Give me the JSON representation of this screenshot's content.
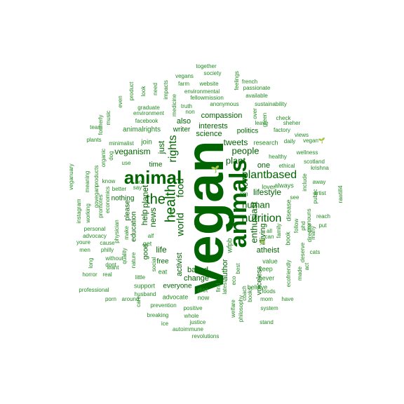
{
  "colors": {
    "dark": "#006400",
    "medium": "#228B22",
    "light": "#2E8B57"
  },
  "words": [
    {
      "text": "vegan",
      "weight": 1.0
    },
    {
      "text": "animals",
      "weight": 0.62
    },
    {
      "text": "animal",
      "weight": 0.5
    },
    {
      "text": "health",
      "weight": 0.36
    },
    {
      "text": "nutrition",
      "weight": 0.3
    },
    {
      "text": "plantbased",
      "weight": 0.3
    },
    {
      "text": "rights",
      "weight": 0.26
    },
    {
      "text": "the",
      "weight": 0.3
    },
    {
      "text": "world",
      "weight": 0.24
    },
    {
      "text": "food",
      "weight": 0.24
    },
    {
      "text": "human",
      "weight": 0.22
    },
    {
      "text": "people",
      "weight": 0.22
    },
    {
      "text": "plant",
      "weight": 0.22
    },
    {
      "text": "lifestyle",
      "weight": 0.2
    },
    {
      "text": "love",
      "weight": 0.2
    },
    {
      "text": "enthusiast",
      "weight": 0.2
    },
    {
      "text": "news",
      "weight": 0.18
    },
    {
      "text": "planet",
      "weight": 0.18
    },
    {
      "text": "help",
      "weight": 0.16
    },
    {
      "text": "just",
      "weight": 0.16
    },
    {
      "text": "veganism",
      "weight": 0.15
    },
    {
      "text": "compassion",
      "weight": 0.15
    },
    {
      "text": "tweets",
      "weight": 0.15
    },
    {
      "text": "interests",
      "weight": 0.14
    },
    {
      "text": "science",
      "weight": 0.14
    },
    {
      "text": "life",
      "weight": 0.15
    },
    {
      "text": "activist",
      "weight": 0.15
    },
    {
      "text": "author",
      "weight": 0.14
    },
    {
      "text": "based",
      "weight": 0.14
    },
    {
      "text": "change",
      "weight": 0.14
    },
    {
      "text": "atheist",
      "weight": 0.14
    },
    {
      "text": "living",
      "weight": 0.14
    },
    {
      "text": "one",
      "weight": 0.13
    },
    {
      "text": "politics",
      "weight": 0.13
    },
    {
      "text": "also",
      "weight": 0.13
    },
    {
      "text": "writer",
      "weight": 0.13
    },
    {
      "text": "time",
      "weight": 0.13
    },
    {
      "text": "nothing",
      "weight": 0.13
    },
    {
      "text": "education",
      "weight": 0.13
    },
    {
      "text": "please",
      "weight": 0.12
    },
    {
      "text": "voiceless",
      "weight": 0.12
    },
    {
      "text": "everyone",
      "weight": 0.12
    },
    {
      "text": "free",
      "weight": 0.12
    },
    {
      "text": "good",
      "weight": 0.12
    },
    {
      "text": "join",
      "weight": 0.11
    },
    {
      "text": "wfpb",
      "weight": 0.11
    },
    {
      "text": "animalrights",
      "weight": 0.11
    },
    {
      "text": "lover",
      "weight": 0.1
    },
    {
      "text": "always",
      "weight": 0.1
    },
    {
      "text": "keep",
      "weight": 0.1
    },
    {
      "text": "never",
      "weight": 0.1
    },
    {
      "text": "believe",
      "weight": 0.1
    },
    {
      "text": "value",
      "weight": 0.1
    },
    {
      "text": "disease",
      "weight": 0.1
    },
    {
      "text": "book",
      "weight": 0.1
    },
    {
      "text": "research",
      "weight": 0.09
    },
    {
      "text": "healthy",
      "weight": 0.09
    },
    {
      "text": "ethical",
      "weight": 0.09
    },
    {
      "text": "green",
      "weight": 0.09
    },
    {
      "text": "see",
      "weight": 0.09
    },
    {
      "text": "i'm",
      "weight": 0.1
    },
    {
      "text": "get",
      "weight": 0.1
    },
    {
      "text": "eat",
      "weight": 0.1
    },
    {
      "text": "support",
      "weight": 0.1
    },
    {
      "text": "advocate",
      "weight": 0.1
    },
    {
      "text": "diet",
      "weight": 0.09
    },
    {
      "text": "now",
      "weight": 0.09
    },
    {
      "text": "little",
      "weight": 0.09
    },
    {
      "text": "social",
      "weight": 0.09
    },
    {
      "text": "nature",
      "weight": 0.08
    },
    {
      "text": "physician",
      "weight": 0.08
    },
    {
      "text": "make",
      "weight": 0.08
    },
    {
      "text": "cause",
      "weight": 0.08
    },
    {
      "text": "better",
      "weight": 0.08
    },
    {
      "text": "know",
      "weight": 0.08
    },
    {
      "text": "use",
      "weight": 0.08
    },
    {
      "text": "minimalist",
      "weight": 0.08
    },
    {
      "text": "plants",
      "weight": 0.08
    },
    {
      "text": "dog",
      "weight": 0.08
    },
    {
      "text": "team",
      "weight": 0.08
    },
    {
      "text": "facebook",
      "weight": 0.08
    },
    {
      "text": "environment",
      "weight": 0.08
    },
    {
      "text": "graduate",
      "weight": 0.08
    },
    {
      "text": "medicine",
      "weight": 0.08
    },
    {
      "text": "non",
      "weight": 0.08
    },
    {
      "text": "truth",
      "weight": 0.08
    },
    {
      "text": "fellowmission",
      "weight": 0.08
    },
    {
      "text": "environmental",
      "weight": 0.08
    },
    {
      "text": "farm",
      "weight": 0.08
    },
    {
      "text": "website",
      "weight": 0.08
    },
    {
      "text": "vegans",
      "weight": 0.08
    },
    {
      "text": "society",
      "weight": 0.08
    },
    {
      "text": "together",
      "weight": 0.08
    },
    {
      "text": "anonymous",
      "weight": 0.08
    },
    {
      "text": "feelings",
      "weight": 0.08
    },
    {
      "text": "french",
      "weight": 0.08
    },
    {
      "text": "passionate",
      "weight": 0.08
    },
    {
      "text": "available",
      "weight": 0.08
    },
    {
      "text": "sustainability",
      "weight": 0.08
    },
    {
      "text": "leave",
      "weight": 0.08
    },
    {
      "text": "over",
      "weight": 0.08
    },
    {
      "text": "check",
      "weight": 0.08
    },
    {
      "text": "sheher",
      "weight": 0.08
    },
    {
      "text": "factory",
      "weight": 0.08
    },
    {
      "text": "views",
      "weight": 0.08
    },
    {
      "text": "daily",
      "weight": 0.08
    },
    {
      "text": "vegan🌱",
      "weight": 0.08
    },
    {
      "text": "wellness",
      "weight": 0.08
    },
    {
      "text": "scotland",
      "weight": 0.08
    },
    {
      "text": "krishna",
      "weight": 0.08
    },
    {
      "text": "away",
      "weight": 0.08
    },
    {
      "text": "artist",
      "weight": 0.08
    },
    {
      "text": "include",
      "weight": 0.08
    },
    {
      "text": "public",
      "weight": 0.08
    },
    {
      "text": "rawtill4",
      "weight": 0.08
    },
    {
      "text": "reach",
      "weight": 0.08
    },
    {
      "text": "put",
      "weight": 0.08
    },
    {
      "text": "cats",
      "weight": 0.08
    },
    {
      "text": "director",
      "weight": 0.08
    },
    {
      "text": "many",
      "weight": 0.08
    },
    {
      "text": "act",
      "weight": 0.08
    },
    {
      "text": "made",
      "weight": 0.08
    },
    {
      "text": "deserve",
      "weight": 0.08
    },
    {
      "text": "ecofriendly",
      "weight": 0.08
    },
    {
      "text": "follow",
      "weight": 0.08
    },
    {
      "text": "phd",
      "weight": 0.08
    },
    {
      "text": "pronouns",
      "weight": 0.08
    },
    {
      "text": "family",
      "weight": 0.08
    },
    {
      "text": "mom",
      "weight": 0.08
    },
    {
      "text": "have",
      "weight": 0.08
    },
    {
      "text": "system",
      "weight": 0.08
    },
    {
      "text": "foods",
      "weight": 0.08
    },
    {
      "text": "stand",
      "weight": 0.08
    },
    {
      "text": "coach",
      "weight": 0.08
    },
    {
      "text": "books",
      "weight": 0.08
    },
    {
      "text": "best",
      "weight": 0.08
    },
    {
      "text": "eco",
      "weight": 0.08
    },
    {
      "text": "welfare",
      "weight": 0.08
    },
    {
      "text": "philosophy",
      "weight": 0.08
    },
    {
      "text": "find",
      "weight": 0.08
    },
    {
      "text": "latest",
      "weight": 0.08
    },
    {
      "text": "positive",
      "weight": 0.08
    },
    {
      "text": "whole",
      "weight": 0.08
    },
    {
      "text": "justice",
      "weight": 0.08
    },
    {
      "text": "autoimmune",
      "weight": 0.08
    },
    {
      "text": "revolutions",
      "weight": 0.08
    },
    {
      "text": "prevention",
      "weight": 0.08
    },
    {
      "text": "breaking",
      "weight": 0.08
    },
    {
      "text": "ice",
      "weight": 0.08
    },
    {
      "text": "care",
      "weight": 0.08
    },
    {
      "text": "around",
      "weight": 0.08
    },
    {
      "text": "porn",
      "weight": 0.08
    },
    {
      "text": "husband",
      "weight": 0.08
    },
    {
      "text": "professional",
      "weight": 0.08
    },
    {
      "text": "real",
      "weight": 0.08
    },
    {
      "text": "horror",
      "weight": 0.08
    },
    {
      "text": "dont",
      "weight": 0.08
    },
    {
      "text": "want",
      "weight": 0.08
    },
    {
      "text": "without",
      "weight": 0.08
    },
    {
      "text": "quality",
      "weight": 0.08
    },
    {
      "text": "philly",
      "weight": 0.08
    },
    {
      "text": "long",
      "weight": 0.08
    },
    {
      "text": "men",
      "weight": 0.08
    },
    {
      "text": "youre",
      "weight": 0.08
    },
    {
      "text": "personal",
      "weight": 0.08
    },
    {
      "text": "advocacy",
      "weight": 0.08
    },
    {
      "text": "instagram",
      "weight": 0.08
    },
    {
      "text": "working",
      "weight": 0.08
    },
    {
      "text": "promotes",
      "weight": 0.08
    },
    {
      "text": "govegan",
      "weight": 0.08
    },
    {
      "text": "products",
      "weight": 0.08
    },
    {
      "text": "organic",
      "weight": 0.08
    },
    {
      "text": "meaning",
      "weight": 0.08
    },
    {
      "text": "veganuary",
      "weight": 0.08
    },
    {
      "text": "economics",
      "weight": 0.08
    },
    {
      "text": "formerly",
      "weight": 0.08
    },
    {
      "text": "music",
      "weight": 0.08
    },
    {
      "text": "even",
      "weight": 0.08
    },
    {
      "text": "product",
      "weight": 0.08
    },
    {
      "text": "look",
      "weight": 0.08
    },
    {
      "text": "need",
      "weight": 0.08
    },
    {
      "text": "impacts",
      "weight": 0.08
    },
    {
      "text": "say",
      "weight": 0.08
    },
    {
      "text": "not",
      "weight": 0.08
    },
    {
      "text": "alf",
      "weight": 0.08
    },
    {
      "text": "veg",
      "weight": 0.08
    },
    {
      "text": "all",
      "weight": 0.08
    },
    {
      "text": "can",
      "weight": 0.08
    },
    {
      "text": "🌱",
      "weight": 0.08
    },
    {
      "text": "🌿",
      "weight": 0.08
    }
  ]
}
